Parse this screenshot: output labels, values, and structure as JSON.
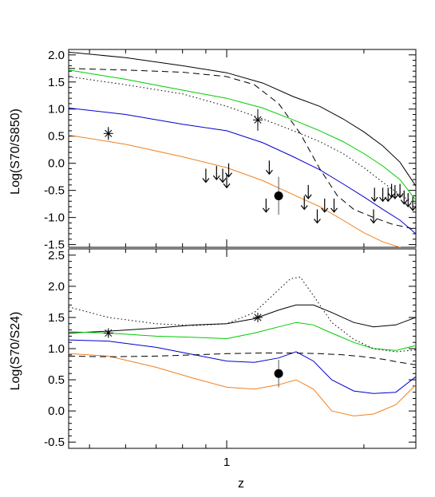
{
  "chart_data": [
    {
      "type": "line",
      "ylabel": "Log(S70/S850)",
      "xlabel": "",
      "xscale": "log",
      "xlim": [
        0.45,
        2.6
      ],
      "ylim": [
        -1.55,
        2.1
      ],
      "yticks": [
        -1.5,
        -1.0,
        -0.5,
        0.0,
        0.5,
        1.0,
        1.5,
        2.0
      ],
      "ytick_labels": [
        "-1.5",
        "-1.0",
        "-0.5",
        "0.0",
        "0.5",
        "1.0",
        "1.5",
        "2.0"
      ],
      "series": [
        {
          "style": "solid",
          "color": "#000000",
          "x": [
            0.45,
            0.6,
            0.8,
            1.0,
            1.2,
            1.4,
            1.6,
            1.8,
            2.0,
            2.2,
            2.4,
            2.6
          ],
          "y": [
            2.05,
            1.95,
            1.8,
            1.67,
            1.48,
            1.23,
            1.05,
            0.82,
            0.58,
            0.32,
            0.02,
            -0.42
          ]
        },
        {
          "style": "solid",
          "color": "#00cc00",
          "x": [
            0.45,
            0.6,
            0.8,
            1.0,
            1.2,
            1.4,
            1.6,
            1.8,
            2.0,
            2.2,
            2.4,
            2.6
          ],
          "y": [
            1.72,
            1.55,
            1.35,
            1.2,
            1.02,
            0.8,
            0.6,
            0.4,
            0.18,
            -0.05,
            -0.3,
            -0.68
          ]
        },
        {
          "style": "solid",
          "color": "#0000cc",
          "x": [
            0.45,
            0.6,
            0.8,
            1.0,
            1.2,
            1.4,
            1.6,
            1.8,
            2.0,
            2.2,
            2.4,
            2.6
          ],
          "y": [
            1.02,
            0.9,
            0.72,
            0.6,
            0.38,
            0.12,
            -0.12,
            -0.38,
            -0.62,
            -0.85,
            -1.05,
            -1.3
          ]
        },
        {
          "style": "solid",
          "color": "#f08020",
          "x": [
            0.45,
            0.6,
            0.8,
            1.0,
            1.2,
            1.4,
            1.6,
            1.8,
            2.0,
            2.2,
            2.4,
            2.6
          ],
          "y": [
            0.52,
            0.35,
            0.12,
            -0.08,
            -0.32,
            -0.58,
            -0.8,
            -1.05,
            -1.28,
            -1.45,
            -1.55,
            -1.65
          ]
        },
        {
          "style": "dashed",
          "color": "#000000",
          "x": [
            0.45,
            0.6,
            0.8,
            1.0,
            1.15,
            1.3,
            1.45,
            1.6,
            1.75,
            1.9,
            2.1,
            2.3,
            2.6
          ],
          "y": [
            1.75,
            1.72,
            1.68,
            1.6,
            1.45,
            1.1,
            0.55,
            -0.1,
            -0.6,
            -0.85,
            -1.0,
            -1.12,
            -1.22
          ]
        },
        {
          "style": "dotted",
          "color": "#000000",
          "x": [
            0.45,
            0.6,
            0.8,
            1.0,
            1.2,
            1.4,
            1.6,
            1.8,
            2.0,
            2.2,
            2.4,
            2.6
          ],
          "y": [
            1.6,
            1.45,
            1.28,
            1.05,
            0.82,
            0.6,
            0.4,
            0.18,
            -0.08,
            -0.35,
            -0.58,
            -0.75
          ]
        }
      ],
      "points": [
        {
          "marker": "asterisk",
          "x": 0.55,
          "y": 0.55,
          "yerr": 0.12
        },
        {
          "marker": "asterisk",
          "x": 1.17,
          "y": 0.8,
          "yerr": 0.2
        },
        {
          "marker": "filled-circle",
          "x": 1.3,
          "y": -0.6,
          "yerr": 0.35
        }
      ],
      "upper_limits": [
        {
          "x": 0.9,
          "y": -0.1
        },
        {
          "x": 0.95,
          "y": -0.05
        },
        {
          "x": 0.98,
          "y": -0.1
        },
        {
          "x": 1.0,
          "y": -0.2
        },
        {
          "x": 1.01,
          "y": 0.0
        },
        {
          "x": 1.22,
          "y": -0.65
        },
        {
          "x": 1.24,
          "y": 0.05
        },
        {
          "x": 1.48,
          "y": -0.6
        },
        {
          "x": 1.51,
          "y": -0.4
        },
        {
          "x": 1.58,
          "y": -0.85
        },
        {
          "x": 1.64,
          "y": -0.65
        },
        {
          "x": 1.72,
          "y": -0.65
        },
        {
          "x": 2.1,
          "y": -0.85
        },
        {
          "x": 2.11,
          "y": -0.45
        },
        {
          "x": 2.2,
          "y": -0.45
        },
        {
          "x": 2.26,
          "y": -0.45
        },
        {
          "x": 2.3,
          "y": -0.38
        },
        {
          "x": 2.34,
          "y": -0.4
        },
        {
          "x": 2.4,
          "y": -0.38
        },
        {
          "x": 2.45,
          "y": -0.5
        },
        {
          "x": 2.5,
          "y": -0.55
        },
        {
          "x": 2.56,
          "y": -0.62
        }
      ]
    },
    {
      "type": "line",
      "ylabel": "Log(S70/S24)",
      "xlabel": "z",
      "xscale": "log",
      "xlim": [
        0.45,
        2.6
      ],
      "ylim": [
        -0.6,
        2.6
      ],
      "yticks": [
        -0.5,
        0.0,
        0.5,
        1.0,
        1.5,
        2.0,
        2.5
      ],
      "ytick_labels": [
        "-0.5",
        "0.0",
        "0.5",
        "1.0",
        "1.5",
        "2.0",
        "2.5"
      ],
      "xticks": [
        1
      ],
      "xtick_labels": [
        "1"
      ],
      "series": [
        {
          "style": "solid",
          "color": "#000000",
          "x": [
            0.45,
            0.55,
            0.7,
            0.85,
            1.0,
            1.15,
            1.3,
            1.42,
            1.55,
            1.7,
            1.9,
            2.1,
            2.35,
            2.6
          ],
          "y": [
            1.25,
            1.28,
            1.33,
            1.38,
            1.4,
            1.48,
            1.62,
            1.7,
            1.7,
            1.58,
            1.42,
            1.35,
            1.38,
            1.5
          ]
        },
        {
          "style": "solid",
          "color": "#00cc00",
          "x": [
            0.45,
            0.55,
            0.7,
            0.85,
            1.0,
            1.15,
            1.3,
            1.42,
            1.55,
            1.7,
            1.9,
            2.1,
            2.35,
            2.6
          ],
          "y": [
            1.27,
            1.25,
            1.2,
            1.18,
            1.16,
            1.25,
            1.35,
            1.42,
            1.38,
            1.25,
            1.1,
            1.0,
            0.97,
            1.05
          ]
        },
        {
          "style": "solid",
          "color": "#0000cc",
          "x": [
            0.45,
            0.55,
            0.7,
            0.85,
            1.0,
            1.15,
            1.3,
            1.42,
            1.55,
            1.7,
            1.9,
            2.1,
            2.35,
            2.6
          ],
          "y": [
            1.14,
            1.12,
            1.02,
            0.9,
            0.8,
            0.78,
            0.85,
            0.95,
            0.8,
            0.5,
            0.32,
            0.28,
            0.3,
            0.55
          ]
        },
        {
          "style": "solid",
          "color": "#f08020",
          "x": [
            0.45,
            0.55,
            0.7,
            0.85,
            1.0,
            1.15,
            1.3,
            1.42,
            1.55,
            1.7,
            1.9,
            2.1,
            2.35,
            2.6
          ],
          "y": [
            0.92,
            0.88,
            0.7,
            0.52,
            0.38,
            0.35,
            0.42,
            0.5,
            0.35,
            0.0,
            -0.08,
            -0.05,
            0.1,
            0.42
          ]
        },
        {
          "style": "dashed",
          "color": "#000000",
          "x": [
            0.45,
            0.55,
            0.7,
            0.85,
            1.0,
            1.2,
            1.4,
            1.6,
            1.8,
            2.0,
            2.2,
            2.4,
            2.6
          ],
          "y": [
            0.88,
            0.87,
            0.88,
            0.9,
            0.92,
            0.93,
            0.93,
            0.92,
            0.9,
            0.87,
            0.83,
            0.78,
            0.74
          ]
        },
        {
          "style": "dotted",
          "color": "#000000",
          "x": [
            0.45,
            0.55,
            0.7,
            0.85,
            1.0,
            1.15,
            1.28,
            1.38,
            1.45,
            1.55,
            1.7,
            1.9,
            2.1,
            2.35,
            2.6
          ],
          "y": [
            1.67,
            1.5,
            1.4,
            1.37,
            1.4,
            1.58,
            1.9,
            2.12,
            2.15,
            1.85,
            1.42,
            1.15,
            1.0,
            0.95,
            0.98
          ]
        }
      ],
      "points": [
        {
          "marker": "asterisk",
          "x": 0.55,
          "y": 1.25,
          "yerr": 0.05
        },
        {
          "marker": "asterisk",
          "x": 1.17,
          "y": 1.5,
          "yerr": 0.05
        },
        {
          "marker": "filled-circle",
          "x": 1.3,
          "y": 0.6,
          "yerr": 0.22
        }
      ]
    }
  ]
}
